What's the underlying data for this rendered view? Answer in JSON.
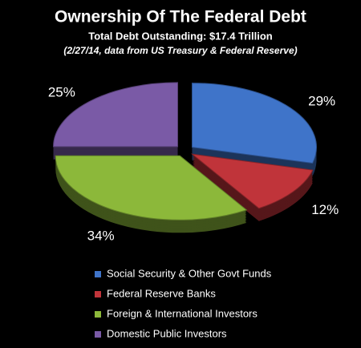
{
  "chart_data": {
    "type": "pie",
    "title": "Ownership Of The Federal Debt",
    "subtitle": "Total Debt Outstanding: $17.4 Trillion",
    "note": "(2/27/14, data from US Treasury & Federal Reserve)",
    "categories": [
      "Social Security & Other Govt Funds",
      "Federal Reserve Banks",
      "Foreign & International Investors",
      "Domestic Public Investors"
    ],
    "values": [
      29,
      12,
      34,
      25
    ],
    "value_labels": [
      "29%",
      "12%",
      "34%",
      "25%"
    ],
    "colors": [
      "#3f74c9",
      "#c0343a",
      "#8cb83a",
      "#7a5aa6"
    ],
    "legend": "bottom"
  }
}
